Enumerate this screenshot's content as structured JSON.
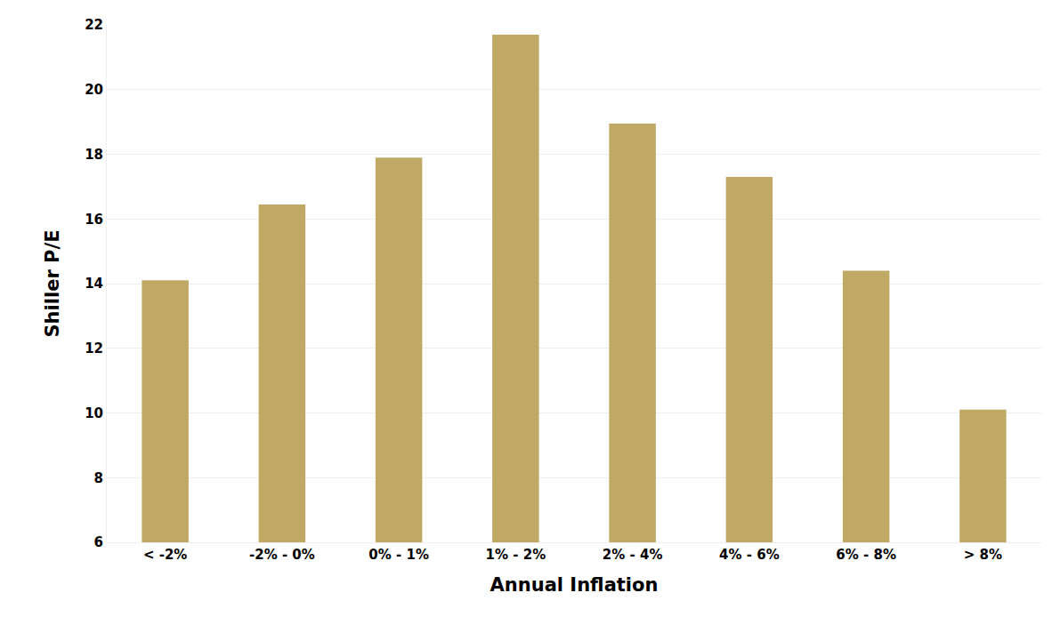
{
  "chart_data": {
    "type": "bar",
    "x_label": "Annual Inflation",
    "y_label": "Shiller P/E",
    "categories": [
      "< -2%",
      "-2% - 0%",
      "0% - 1%",
      "1% - 2%",
      "2% - 4%",
      "4% - 6%",
      "6% - 8%",
      "> 8%"
    ],
    "values": [
      14.1,
      16.45,
      17.9,
      21.7,
      18.95,
      17.3,
      14.4,
      10.1
    ],
    "color": "#c0a865",
    "ylim": [
      6,
      22
    ],
    "yticks": [
      6,
      8,
      10,
      12,
      14,
      16,
      18,
      20,
      22
    ],
    "grid": true
  }
}
